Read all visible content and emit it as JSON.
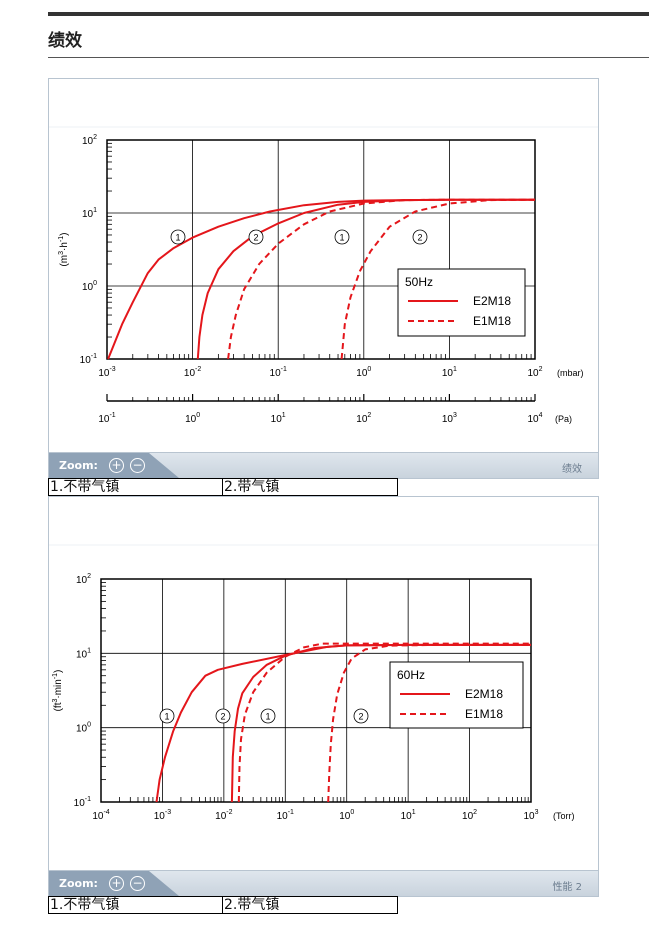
{
  "page": {
    "title": "绩效"
  },
  "panels": [
    {
      "zoom_label": "Zoom:",
      "zoom_in": "+",
      "zoom_out": "−",
      "caption": "绩效",
      "notes": [
        "1.不带气镇",
        "2.带气镇"
      ]
    },
    {
      "zoom_label": "Zoom:",
      "zoom_in": "+",
      "zoom_out": "−",
      "caption": "性能 2",
      "notes": [
        "1.不带气镇",
        "2.带气镇"
      ]
    }
  ],
  "chart_data": [
    {
      "type": "line",
      "xscale": "log",
      "yscale": "log",
      "xlim": [
        0.001,
        100
      ],
      "ylim": [
        0.1,
        100
      ],
      "x_unit": "(mbar)",
      "ylabel_base": "(m",
      "ylabel_sup1": "3",
      "ylabel_mid": "·h",
      "ylabel_sup2": "-1",
      "ylabel_end": ")",
      "x_ticks": [
        "10^-3",
        "10^-2",
        "10^-1",
        "10^0",
        "10^1",
        "10^2"
      ],
      "y_ticks": [
        "10^-1",
        "10^0",
        "10^1",
        "10^2"
      ],
      "secondary_axis": {
        "unit": "(Pa)",
        "ticks": [
          "10^-1",
          "10^0",
          "10^1",
          "10^2",
          "10^3",
          "10^4"
        ]
      },
      "legend_title": "50Hz",
      "legend_position": "lower-right",
      "series": [
        {
          "name": "E2M18",
          "style": "solid",
          "marker": "1",
          "x": [
            0.00103,
            0.0015,
            0.002,
            0.003,
            0.004,
            0.006,
            0.01,
            0.02,
            0.04,
            0.08,
            0.2,
            0.5,
            1,
            3,
            10,
            100
          ],
          "y": [
            0.1,
            0.3,
            0.6,
            1.5,
            2.3,
            3.3,
            4.6,
            6.5,
            8.5,
            10.5,
            12.8,
            14.2,
            14.8,
            15,
            15.2,
            15.2
          ]
        },
        {
          "name": "E2M18",
          "style": "solid",
          "marker": "2",
          "x": [
            0.0115,
            0.012,
            0.013,
            0.015,
            0.02,
            0.03,
            0.05,
            0.1,
            0.2,
            0.5,
            1,
            3,
            10,
            100
          ],
          "y": [
            0.1,
            0.2,
            0.4,
            0.8,
            1.7,
            3,
            4.8,
            7.2,
            10,
            13,
            14.2,
            15,
            15.2,
            15.2
          ]
        },
        {
          "name": "E1M18",
          "style": "dashed",
          "marker": "1",
          "x": [
            0.026,
            0.028,
            0.032,
            0.04,
            0.06,
            0.1,
            0.2,
            0.4,
            1,
            3,
            10,
            100
          ],
          "y": [
            0.1,
            0.2,
            0.4,
            0.9,
            2,
            3.8,
            7,
            10.5,
            13.5,
            15,
            15.2,
            15.2
          ]
        },
        {
          "name": "E1M18",
          "style": "dashed",
          "marker": "2",
          "x": [
            0.55,
            0.6,
            0.7,
            0.9,
            1.2,
            2,
            4,
            10,
            30,
            100
          ],
          "y": [
            0.1,
            0.3,
            0.7,
            1.6,
            3,
            6.5,
            10.5,
            13.5,
            15,
            15.2
          ]
        }
      ]
    },
    {
      "type": "line",
      "xscale": "log",
      "yscale": "log",
      "xlim": [
        0.0001,
        1000
      ],
      "ylim": [
        0.1,
        100
      ],
      "x_unit": "(Torr)",
      "ylabel_base": "(ft",
      "ylabel_sup1": "3",
      "ylabel_mid": "·min",
      "ylabel_sup2": "-1",
      "ylabel_end": ")",
      "x_ticks": [
        "10^-4",
        "10^-3",
        "10^-2",
        "10^-1",
        "10^0",
        "10^1",
        "10^2",
        "10^3"
      ],
      "y_ticks": [
        "10^-1",
        "10^0",
        "10^1",
        "10^2"
      ],
      "legend_title": "60Hz",
      "legend_position": "right",
      "series": [
        {
          "name": "E2M18",
          "style": "solid",
          "marker": "1",
          "x": [
            0.0008,
            0.0009,
            0.0011,
            0.0015,
            0.002,
            0.003,
            0.005,
            0.008,
            0.02,
            0.1,
            0.5,
            1,
            10,
            1000
          ],
          "y": [
            0.1,
            0.2,
            0.4,
            0.9,
            1.6,
            3,
            5,
            6,
            7.2,
            9.5,
            12.3,
            12.8,
            13,
            13
          ]
        },
        {
          "name": "E2M18",
          "style": "solid",
          "marker": "2",
          "x": [
            0.0135,
            0.014,
            0.015,
            0.017,
            0.02,
            0.03,
            0.05,
            0.1,
            0.3,
            1,
            10,
            1000
          ],
          "y": [
            0.1,
            0.4,
            0.9,
            1.8,
            2.9,
            4.8,
            7,
            9.3,
            11.8,
            12.8,
            13,
            13
          ]
        },
        {
          "name": "E1M18",
          "style": "dashed",
          "marker": "1",
          "x": [
            0.0175,
            0.018,
            0.019,
            0.022,
            0.03,
            0.05,
            0.1,
            0.2,
            0.4,
            1,
            10,
            1000
          ],
          "y": [
            0.1,
            0.3,
            0.7,
            1.5,
            3,
            5.5,
            9,
            12,
            13.5,
            13.5,
            13.5,
            13.5
          ]
        },
        {
          "name": "E1M18",
          "style": "dashed",
          "marker": "2",
          "x": [
            0.5,
            0.52,
            0.55,
            0.6,
            0.7,
            0.9,
            1.2,
            2,
            5,
            30,
            1000
          ],
          "y": [
            0.1,
            0.25,
            0.6,
            1.3,
            2.8,
            5.5,
            8.5,
            11.3,
            12.7,
            13,
            13
          ]
        }
      ]
    }
  ]
}
